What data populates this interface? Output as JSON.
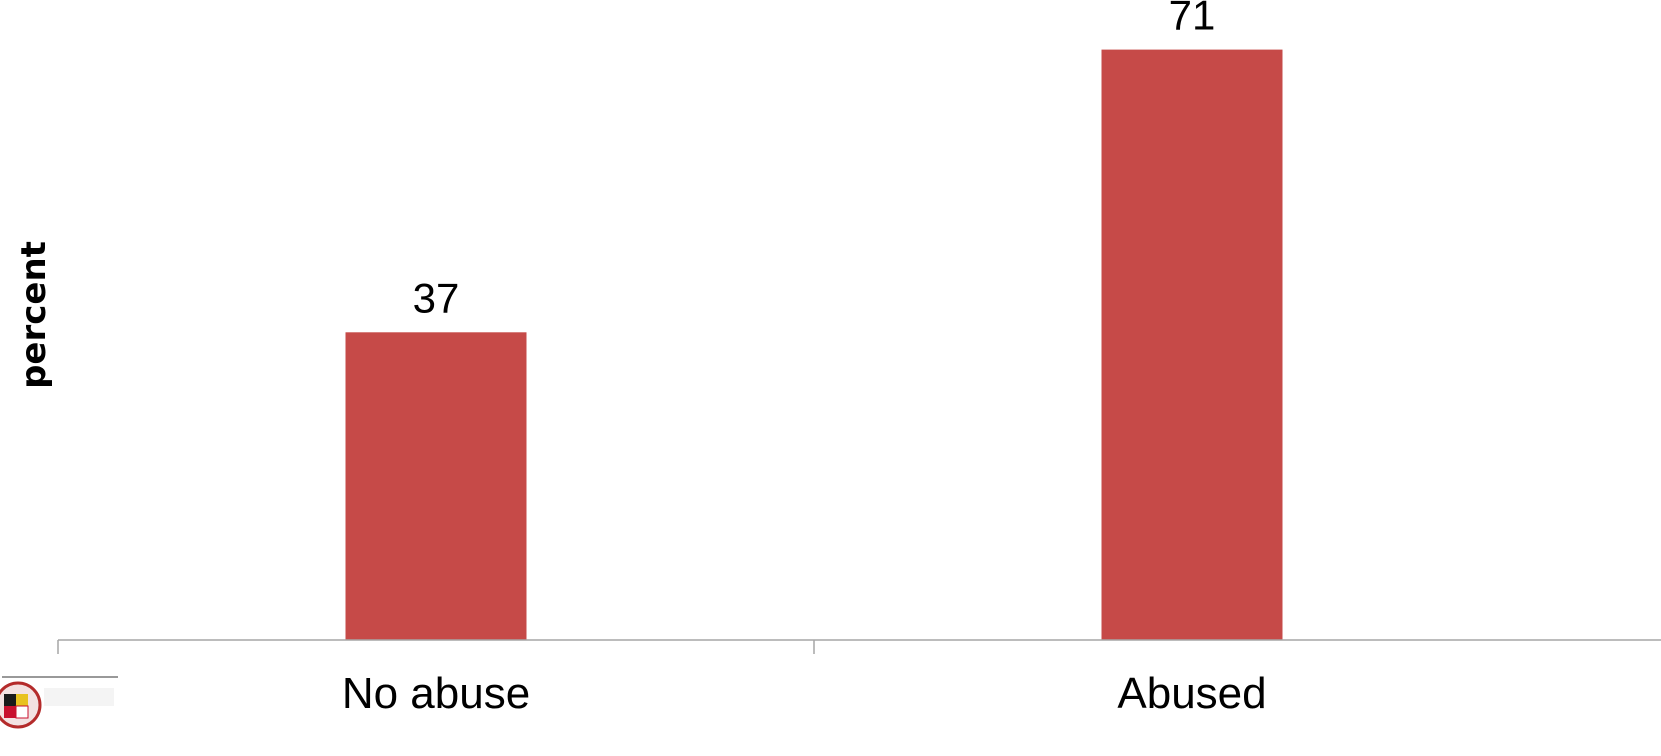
{
  "chart_data": {
    "type": "bar",
    "title": "",
    "xlabel": "",
    "ylabel": "percent",
    "categories": [
      "No abuse",
      "Abused"
    ],
    "values": [
      37,
      71
    ],
    "data_labels": [
      "37",
      "71"
    ],
    "ylim": [
      0,
      76
    ],
    "grid": false,
    "legend": "none",
    "bar_color": "#C64A48",
    "axis_color": "#A6A6A6"
  },
  "logo": {
    "icon": "university-seal-icon"
  }
}
